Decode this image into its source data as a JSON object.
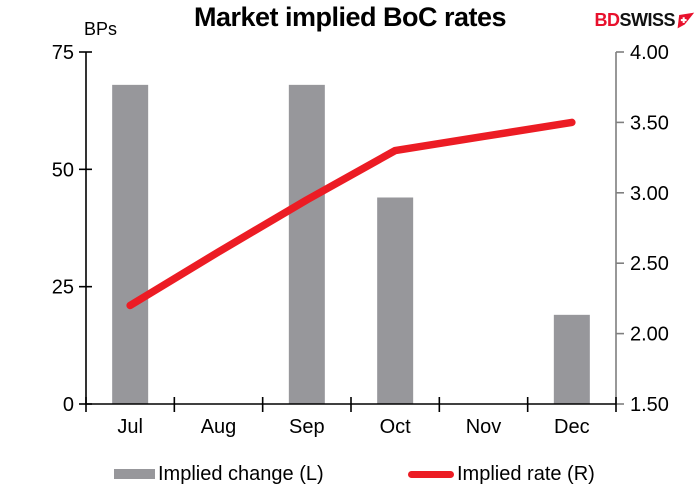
{
  "header": {
    "title": "Market implied BoC rates",
    "logo_part1": "BD",
    "logo_part2": "SWISS",
    "logo_icon": "swiss-flag-arrow-icon"
  },
  "colors": {
    "bar_gray": "#97979b",
    "line_red": "#ec1c24",
    "logo_red": "#e8112d",
    "logo_black": "#111111",
    "axis_black": "#000000",
    "right_axis_gray": "#7f7f7f",
    "text_black": "#000000"
  },
  "chart_data": {
    "type": "bar+line combo",
    "title": "Market implied BoC rates",
    "categories": [
      "Jul",
      "Aug",
      "Sep",
      "Oct",
      "Nov",
      "Dec"
    ],
    "series": [
      {
        "name": "Implied change (L)",
        "type": "bar",
        "axis": "left",
        "values": [
          68,
          null,
          68,
          44,
          null,
          19
        ]
      },
      {
        "name": "Implied rate (R)",
        "type": "line",
        "axis": "right",
        "values": [
          2.2,
          2.58,
          2.95,
          3.3,
          3.4,
          3.5
        ]
      }
    ],
    "left_axis": {
      "unit_label": "BPs",
      "ticks": [
        0,
        25,
        50,
        75
      ],
      "range": [
        0,
        75
      ]
    },
    "right_axis": {
      "ticks": [
        "1.50",
        "2.00",
        "2.50",
        "3.00",
        "3.50",
        "4.00"
      ],
      "range": [
        1.5,
        4.0
      ]
    },
    "grid": false,
    "legend_position": "bottom"
  },
  "legend": {
    "items": [
      {
        "label": "Implied change (L)",
        "swatch": "gray-bar"
      },
      {
        "label": "Implied rate (R)",
        "swatch": "red-line"
      }
    ]
  }
}
